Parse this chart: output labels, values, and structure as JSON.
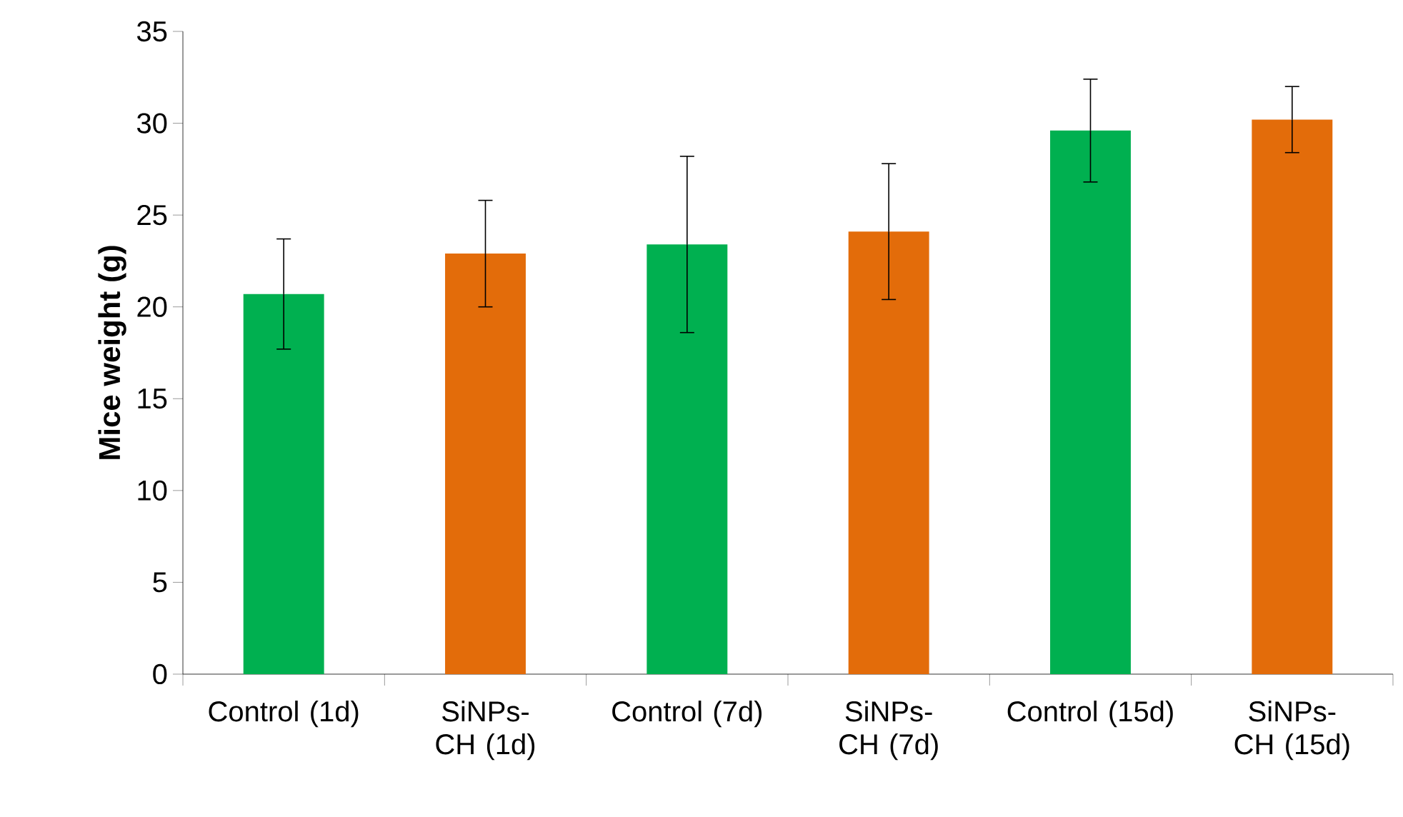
{
  "chart_data": {
    "type": "bar",
    "ylabel": "Mice weight (g)",
    "categories": [
      "Control (1d)",
      "SiNPs-CH (1d)",
      "Control (7d)",
      "SiNPs-CH (7d)",
      "Control (15d)",
      "SiNPs-CH (15d)"
    ],
    "values": [
      20.7,
      22.9,
      23.4,
      24.1,
      29.6,
      30.2
    ],
    "errors": [
      3.0,
      2.9,
      4.8,
      3.7,
      2.8,
      1.8
    ],
    "colors": [
      "#00b050",
      "#e36c0a",
      "#00b050",
      "#e36c0a",
      "#00b050",
      "#e36c0a"
    ],
    "ylim": [
      0,
      35
    ],
    "yticks": [
      0,
      5,
      10,
      15,
      20,
      25,
      30,
      35
    ]
  }
}
